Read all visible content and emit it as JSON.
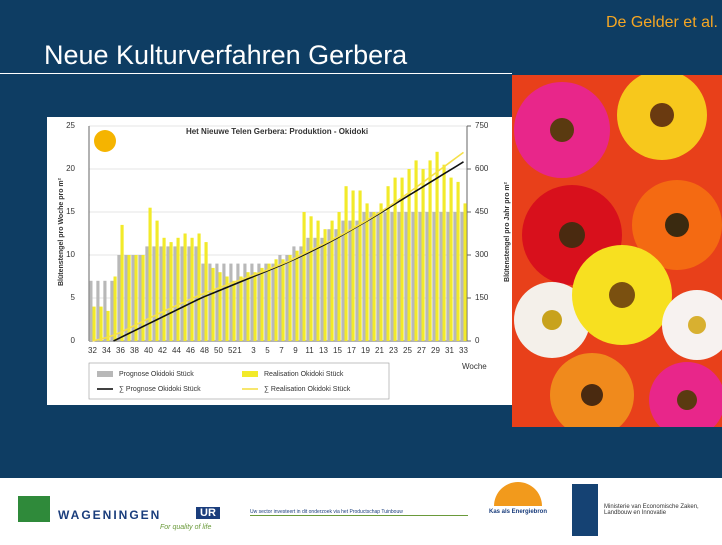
{
  "slide": {
    "title": "Neue Kulturverfahren Gerbera",
    "author": "De Gelder et al.",
    "footer": {
      "wageningen": "WAGENINGEN",
      "ur": "UR",
      "tagline": "For quality of life",
      "sector": "Uw sector investeert in dit onderzoek via het Productschap Tuinbouw",
      "kas": "Kas als Energiebron",
      "ministry": "Ministerie van Economische Zaken, Landbouw en Innovatie"
    }
  },
  "chart_data": {
    "type": "bar",
    "title": "Het Nieuwe Telen Gerbera: Produktion - Okidoki",
    "y_label": "Blütenstengel pro Woche pro m²",
    "y2_label": "Blütenstengel pro Jahr pro m²",
    "x_label": "Woche",
    "categories": [
      "32",
      null,
      "34",
      null,
      "36",
      null,
      "38",
      null,
      "40",
      null,
      "42",
      null,
      "44",
      null,
      "46",
      null,
      "48",
      null,
      "50",
      null,
      "52",
      "1",
      null,
      "3",
      null,
      "5",
      null,
      "7",
      null,
      "9",
      null,
      "11",
      null,
      "13",
      null,
      "15",
      null,
      "17",
      null,
      "19",
      null,
      "21",
      null,
      "23",
      null,
      "25",
      null,
      "27",
      null,
      "29",
      null,
      "31",
      null,
      "33"
    ],
    "ylim": [
      0,
      25
    ],
    "yticks": [
      0,
      5,
      10,
      15,
      20,
      25
    ],
    "y2lim": [
      0,
      750
    ],
    "y2ticks": [
      0,
      150,
      300,
      450,
      600,
      750
    ],
    "grid": true,
    "series": [
      {
        "name": "Prognose Okidoki Stück",
        "color": "#b8b8b8",
        "type": "bar",
        "values": [
          7,
          7,
          7,
          7,
          10,
          10,
          10,
          10,
          11,
          11,
          11,
          11,
          11,
          11,
          11,
          11,
          9,
          9,
          9,
          9,
          9,
          9,
          9,
          9,
          9,
          9,
          9,
          10,
          10,
          11,
          11,
          12,
          12,
          12,
          13,
          13,
          14,
          14,
          14,
          15,
          15,
          15,
          15,
          15,
          15,
          15,
          15,
          15,
          15,
          15,
          15,
          15,
          15,
          15
        ]
      },
      {
        "name": "Realisation Okidoki Stück",
        "color": "#f2ea2a",
        "type": "bar",
        "values": [
          4,
          4,
          3.5,
          7.5,
          13.5,
          10,
          10,
          10,
          15.5,
          14,
          12,
          11.5,
          12,
          12.5,
          12,
          12.5,
          11.5,
          8.5,
          8,
          7.5,
          7,
          7.5,
          8,
          8,
          8.5,
          9,
          9.5,
          9.5,
          10,
          10.5,
          15,
          14.5,
          14,
          13,
          14,
          15,
          18,
          17.5,
          17.5,
          16,
          15,
          16,
          18,
          19,
          19,
          20,
          21,
          20,
          21,
          22,
          20.5,
          19,
          18.5,
          16
        ]
      },
      {
        "name": "∑ Prognose Okidoki Stück",
        "color": "#111111",
        "type": "line",
        "axis": "y2",
        "values": [
          null,
          null,
          null,
          0,
          12,
          24,
          36,
          48,
          60,
          72,
          84,
          96,
          108,
          120,
          132,
          144,
          155,
          165,
          175,
          185,
          195,
          205,
          215,
          225,
          235,
          245,
          255,
          265,
          276,
          287,
          298,
          310,
          322,
          334,
          347,
          360,
          374,
          388,
          402,
          416,
          430,
          445,
          460,
          475,
          490,
          505,
          520,
          535,
          550,
          565,
          580,
          595,
          610,
          625
        ]
      },
      {
        "name": "∑ Realisation Okidoki Stück",
        "color": "#f5e04a",
        "type": "line",
        "axis": "y2",
        "values": [
          0,
          6,
          12,
          20,
          30,
          42,
          54,
          66,
          78,
          90,
          102,
          113,
          124,
          135,
          146,
          157,
          167,
          176,
          185,
          194,
          203,
          212,
          221,
          230,
          239,
          248,
          258,
          268,
          278,
          290,
          302,
          314,
          326,
          338,
          350,
          363,
          376,
          390,
          404,
          418,
          433,
          448,
          464,
          480,
          497,
          514,
          532,
          550,
          568,
          586,
          604,
          622,
          640,
          658
        ]
      }
    ]
  }
}
